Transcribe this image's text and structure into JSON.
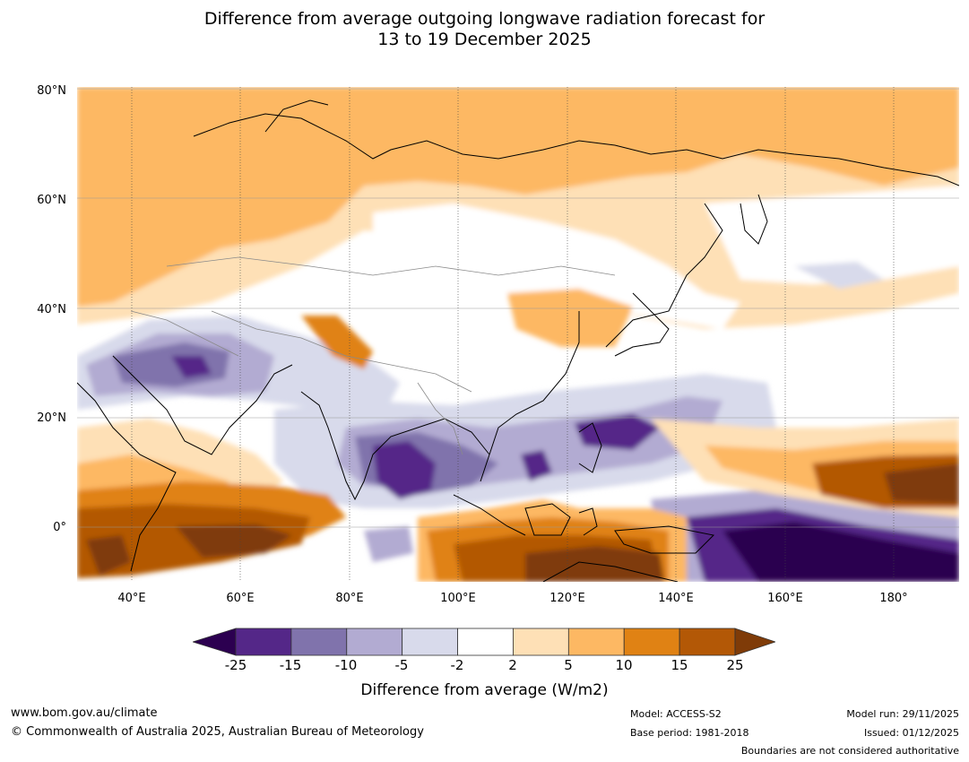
{
  "title": {
    "line1": "Difference from average outgoing longwave radiation forecast for",
    "line2": "13 to 19 December 2025"
  },
  "map": {
    "region": "Asia and Western Pacific",
    "lat_range": [
      -10,
      80
    ],
    "lon_range": [
      30,
      192
    ],
    "lat_labels": [
      "80°N",
      "60°N",
      "40°N",
      "20°N",
      "0°"
    ],
    "lon_labels": [
      "40°E",
      "60°E",
      "80°E",
      "100°E",
      "120°E",
      "140°E",
      "160°E",
      "180°"
    ],
    "gridlines": true
  },
  "colorbar": {
    "ticks": [
      "-25",
      "-15",
      "-10",
      "-5",
      "-2",
      "2",
      "5",
      "10",
      "15",
      "25"
    ],
    "colors": [
      "#2c0050",
      "#542788",
      "#8073ac",
      "#b2abd2",
      "#d8daeb",
      "#ffffff",
      "#fee0b6",
      "#fdb863",
      "#e08214",
      "#b35806",
      "#7f3b08"
    ],
    "label": "Difference from average (W/m2)"
  },
  "footer": {
    "website": "www.bom.gov.au/climate",
    "copyright": "© Commonwealth of Australia 2025, Australian Bureau of Meteorology",
    "model": "Model: ACCESS-S2",
    "base_period": "Base period: 1981-2018",
    "model_run": "Model run: 29/11/2025",
    "issued": "Issued: 01/12/2025",
    "disclaimer": "Boundaries are not considered authoritative"
  }
}
